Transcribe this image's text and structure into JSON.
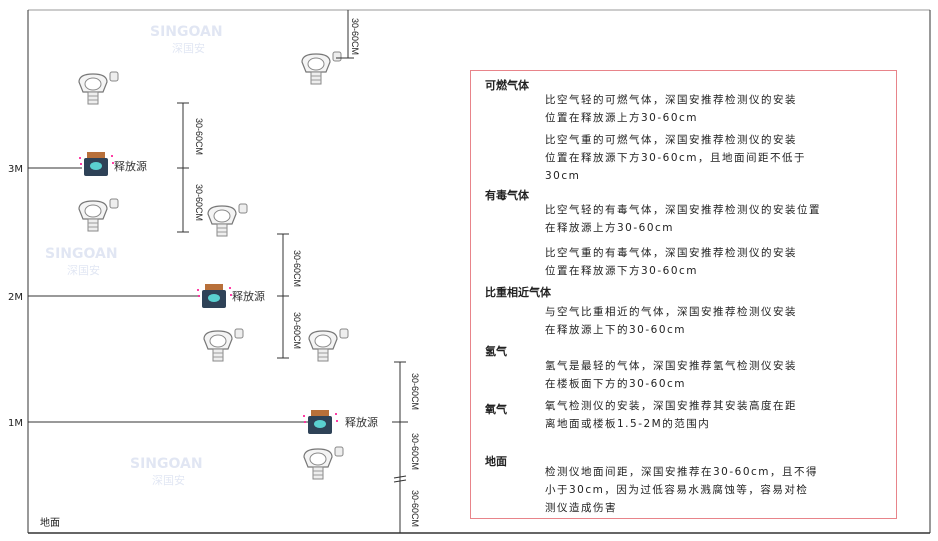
{
  "watermark": {
    "brand": "SINGOAN",
    "name": "深国安"
  },
  "levels": {
    "m3": "3M",
    "m2": "2M",
    "m1": "1M",
    "ground": "地面"
  },
  "source_label": "释放源",
  "dimension_label": "30-60CM",
  "colors": {
    "legend_border": "#e8848a",
    "source_body": "#2e4257",
    "source_top": "#b8703a",
    "source_face": "#5ad0d0"
  },
  "legend": {
    "combustible": {
      "title": "可燃气体",
      "light": [
        "比空气轻的可燃气体，深国安推荐检测仪的安装",
        "位置在释放源上方30-60cm"
      ],
      "heavy": [
        "比空气重的可燃气体，深国安推荐检测仪的安装",
        "位置在释放源下方30-60cm，且地面间距不低于",
        "30cm"
      ]
    },
    "toxic": {
      "title": "有毒气体",
      "light": [
        "比空气轻的有毒气体，深国安推荐检测仪的安装位置",
        "在释放源上方30-60cm"
      ],
      "heavy": [
        "比空气重的有毒气体，深国安推荐检测仪的安装",
        "位置在释放源下方30-60cm"
      ]
    },
    "similar": {
      "title": "比重相近气体",
      "text": [
        "与空气比重相近的气体，深国安推荐检测仪安装",
        "在释放源上下的30-60cm"
      ]
    },
    "hydrogen": {
      "title": "氢气",
      "text": [
        "氢气是最轻的气体，深国安推荐氢气检测仪安装",
        "在楼板面下方的30-60cm"
      ]
    },
    "oxygen": {
      "title": "氧气",
      "text": [
        "氧气检测仪的安装，深国安推荐其安装高度在距",
        "离地面或楼板1.5-2M的范围内"
      ]
    },
    "ground": {
      "title": "地面",
      "text": [
        "检测仪地面间距，深国安推荐在30-60cm，且不得",
        "小于30cm，因为过低容易水溅腐蚀等，容易对检",
        "测仪造成伤害"
      ]
    }
  }
}
